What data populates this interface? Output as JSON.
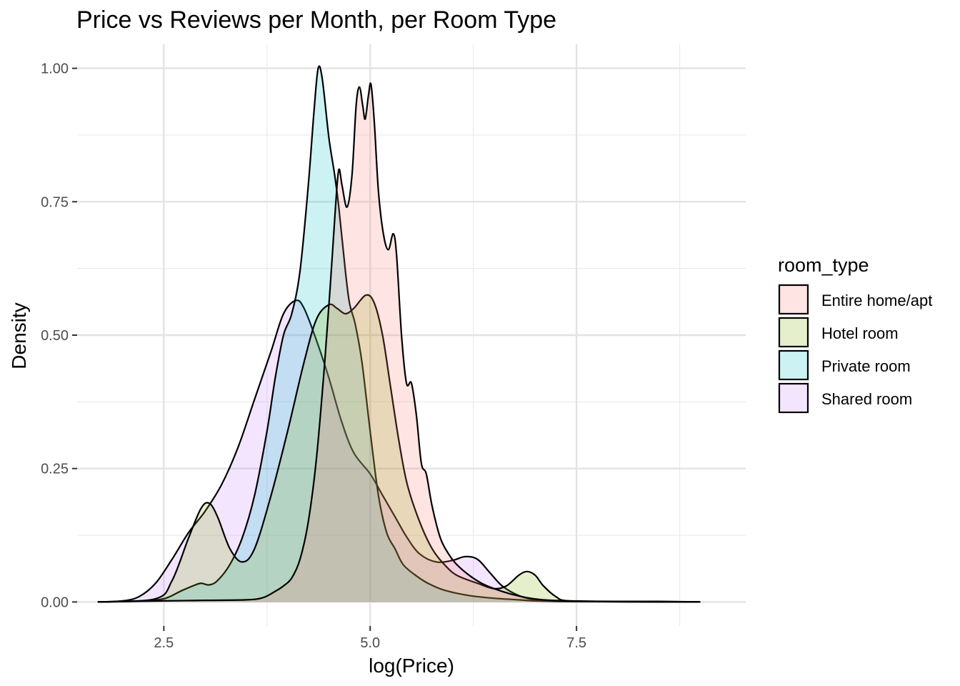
{
  "chart_data": {
    "type": "area",
    "title": "Price vs Reviews per Month, per Room Type",
    "xlabel": "log(Price)",
    "ylabel": "Density",
    "xlim": [
      1.45,
      9.55
    ],
    "ylim": [
      -0.045,
      1.045
    ],
    "x_ticks": [
      2.5,
      5.0,
      7.5
    ],
    "x_tick_labels": [
      "2.5",
      "5.0",
      "7.5"
    ],
    "y_ticks": [
      0,
      0.25,
      0.5,
      0.75,
      1.0
    ],
    "y_tick_labels": [
      "0.00",
      "0.25",
      "0.50",
      "0.75",
      "1.00"
    ],
    "grid": true,
    "legend": {
      "title": "room_type",
      "position": "right"
    },
    "series": [
      {
        "name": "Shared room",
        "color": "#C77CFF",
        "points": [
          [
            1.7,
            0
          ],
          [
            2.0,
            0.002
          ],
          [
            2.2,
            0.01
          ],
          [
            2.4,
            0.035
          ],
          [
            2.6,
            0.08
          ],
          [
            2.8,
            0.13
          ],
          [
            3.0,
            0.17
          ],
          [
            3.2,
            0.22
          ],
          [
            3.4,
            0.29
          ],
          [
            3.6,
            0.38
          ],
          [
            3.8,
            0.47
          ],
          [
            3.95,
            0.54
          ],
          [
            4.1,
            0.565
          ],
          [
            4.2,
            0.55
          ],
          [
            4.35,
            0.49
          ],
          [
            4.5,
            0.42
          ],
          [
            4.65,
            0.34
          ],
          [
            4.8,
            0.28
          ],
          [
            5.0,
            0.24
          ],
          [
            5.15,
            0.2
          ],
          [
            5.3,
            0.16
          ],
          [
            5.45,
            0.12
          ],
          [
            5.6,
            0.09
          ],
          [
            5.8,
            0.075
          ],
          [
            6.0,
            0.078
          ],
          [
            6.15,
            0.085
          ],
          [
            6.3,
            0.08
          ],
          [
            6.45,
            0.055
          ],
          [
            6.6,
            0.03
          ],
          [
            6.8,
            0.012
          ],
          [
            7.0,
            0.004
          ],
          [
            7.3,
            0.001
          ],
          [
            9.0,
            0
          ]
        ]
      },
      {
        "name": "Private room",
        "color": "#00BFC4",
        "points": [
          [
            1.7,
            0
          ],
          [
            2.2,
            0.002
          ],
          [
            2.5,
            0.006
          ],
          [
            2.7,
            0.02
          ],
          [
            2.85,
            0.03
          ],
          [
            2.95,
            0.035
          ],
          [
            3.05,
            0.032
          ],
          [
            3.15,
            0.04
          ],
          [
            3.3,
            0.07
          ],
          [
            3.45,
            0.12
          ],
          [
            3.6,
            0.2
          ],
          [
            3.75,
            0.32
          ],
          [
            3.85,
            0.42
          ],
          [
            3.95,
            0.5
          ],
          [
            4.05,
            0.54
          ],
          [
            4.15,
            0.62
          ],
          [
            4.25,
            0.78
          ],
          [
            4.32,
            0.92
          ],
          [
            4.37,
            1.0
          ],
          [
            4.42,
            0.98
          ],
          [
            4.5,
            0.87
          ],
          [
            4.57,
            0.8
          ],
          [
            4.62,
            0.74
          ],
          [
            4.7,
            0.62
          ],
          [
            4.75,
            0.56
          ],
          [
            4.82,
            0.52
          ],
          [
            4.9,
            0.45
          ],
          [
            5.0,
            0.32
          ],
          [
            5.1,
            0.2
          ],
          [
            5.2,
            0.13
          ],
          [
            5.3,
            0.1
          ],
          [
            5.4,
            0.07
          ],
          [
            5.55,
            0.05
          ],
          [
            5.7,
            0.035
          ],
          [
            5.9,
            0.022
          ],
          [
            6.2,
            0.012
          ],
          [
            6.5,
            0.007
          ],
          [
            6.8,
            0.004
          ],
          [
            7.0,
            0.002
          ],
          [
            7.5,
            0.001
          ],
          [
            9.0,
            0
          ]
        ]
      },
      {
        "name": "Hotel room",
        "color": "#7CAE00",
        "points": [
          [
            1.7,
            0
          ],
          [
            2.4,
            0.006
          ],
          [
            2.6,
            0.04
          ],
          [
            2.8,
            0.12
          ],
          [
            2.95,
            0.175
          ],
          [
            3.05,
            0.185
          ],
          [
            3.15,
            0.16
          ],
          [
            3.3,
            0.1
          ],
          [
            3.45,
            0.075
          ],
          [
            3.6,
            0.1
          ],
          [
            3.8,
            0.2
          ],
          [
            4.0,
            0.32
          ],
          [
            4.2,
            0.45
          ],
          [
            4.35,
            0.53
          ],
          [
            4.5,
            0.557
          ],
          [
            4.6,
            0.55
          ],
          [
            4.7,
            0.54
          ],
          [
            4.8,
            0.55
          ],
          [
            4.95,
            0.575
          ],
          [
            5.05,
            0.56
          ],
          [
            5.15,
            0.5
          ],
          [
            5.25,
            0.4
          ],
          [
            5.35,
            0.3
          ],
          [
            5.45,
            0.22
          ],
          [
            5.6,
            0.15
          ],
          [
            5.75,
            0.1
          ],
          [
            5.9,
            0.07
          ],
          [
            6.05,
            0.05
          ],
          [
            6.3,
            0.035
          ],
          [
            6.5,
            0.025
          ],
          [
            6.65,
            0.03
          ],
          [
            6.8,
            0.05
          ],
          [
            6.9,
            0.057
          ],
          [
            7.0,
            0.05
          ],
          [
            7.1,
            0.03
          ],
          [
            7.25,
            0.01
          ],
          [
            7.4,
            0.002
          ],
          [
            8.0,
            0.0005
          ],
          [
            9.0,
            0
          ]
        ]
      },
      {
        "name": "Entire home/apt",
        "color": "#F8766D",
        "points": [
          [
            1.7,
            0
          ],
          [
            2.5,
            0.002
          ],
          [
            3.0,
            0.003
          ],
          [
            3.5,
            0.004
          ],
          [
            3.7,
            0.008
          ],
          [
            3.85,
            0.02
          ],
          [
            3.95,
            0.03
          ],
          [
            4.05,
            0.045
          ],
          [
            4.15,
            0.08
          ],
          [
            4.25,
            0.15
          ],
          [
            4.35,
            0.27
          ],
          [
            4.45,
            0.45
          ],
          [
            4.52,
            0.6
          ],
          [
            4.58,
            0.74
          ],
          [
            4.62,
            0.81
          ],
          [
            4.66,
            0.78
          ],
          [
            4.72,
            0.74
          ],
          [
            4.78,
            0.8
          ],
          [
            4.83,
            0.93
          ],
          [
            4.87,
            0.965
          ],
          [
            4.91,
            0.93
          ],
          [
            4.94,
            0.905
          ],
          [
            4.98,
            0.95
          ],
          [
            5.01,
            0.97
          ],
          [
            5.05,
            0.9
          ],
          [
            5.1,
            0.77
          ],
          [
            5.16,
            0.69
          ],
          [
            5.22,
            0.66
          ],
          [
            5.28,
            0.69
          ],
          [
            5.32,
            0.65
          ],
          [
            5.38,
            0.5
          ],
          [
            5.44,
            0.41
          ],
          [
            5.5,
            0.41
          ],
          [
            5.56,
            0.35
          ],
          [
            5.62,
            0.26
          ],
          [
            5.68,
            0.24
          ],
          [
            5.75,
            0.18
          ],
          [
            5.85,
            0.12
          ],
          [
            5.95,
            0.09
          ],
          [
            6.05,
            0.07
          ],
          [
            6.2,
            0.05
          ],
          [
            6.35,
            0.035
          ],
          [
            6.5,
            0.025
          ],
          [
            6.7,
            0.015
          ],
          [
            6.9,
            0.008
          ],
          [
            7.1,
            0.004
          ],
          [
            7.4,
            0.002
          ],
          [
            8.0,
            0.001
          ],
          [
            8.5,
            0.001
          ],
          [
            9.0,
            0
          ]
        ]
      }
    ],
    "legend_order": [
      "Entire home/apt",
      "Hotel room",
      "Private room",
      "Shared room"
    ]
  }
}
